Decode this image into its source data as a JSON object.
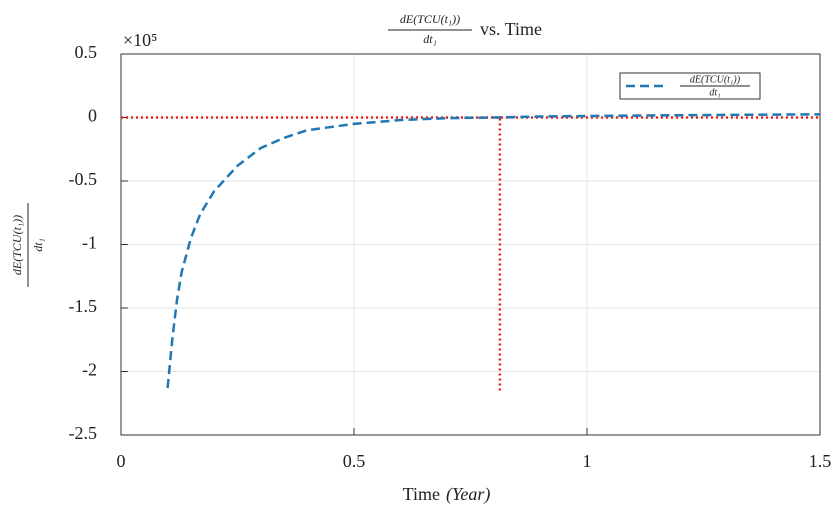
{
  "chart_data": {
    "type": "line",
    "title": {
      "numerator": "dE(TCU(t₁))",
      "denominator": "dt₁",
      "text": "vs. Time"
    },
    "x_label": {
      "text": "Time",
      "unit": "(Year)"
    },
    "y_label": {
      "numerator": "dE(TCU(t₁))",
      "denominator": "dt₁"
    },
    "y_multiplier": "×10⁵",
    "x": [
      0.1,
      0.11,
      0.12,
      0.13,
      0.15,
      0.17,
      0.2,
      0.25,
      0.3,
      0.35,
      0.4,
      0.5,
      0.6,
      0.7,
      0.8,
      0.9,
      1.0,
      1.2,
      1.5
    ],
    "series": [
      {
        "name": {
          "numerator": "dE(TCU(t₁))",
          "denominator": "dt₁"
        },
        "color": "#1f77b4",
        "values": [
          -2.13,
          -1.75,
          -1.44,
          -1.22,
          -0.95,
          -0.76,
          -0.58,
          -0.38,
          -0.24,
          -0.16,
          -0.1,
          -0.05,
          -0.02,
          -0.005,
          0.0,
          0.008,
          0.012,
          0.018,
          0.025
        ]
      }
    ],
    "hline": {
      "y": 0,
      "color": "#e8231f"
    },
    "vline": {
      "x": 0.813,
      "ymin": -2.15,
      "ymax": 0,
      "color": "#e8231f"
    },
    "xlim": [
      0,
      1.5
    ],
    "ylim": [
      -2.5,
      0.5
    ],
    "xticks": [
      0,
      0.5,
      1,
      1.5
    ],
    "yticks": [
      0.5,
      0,
      -0.5,
      -1,
      -1.5,
      -2,
      -2.5
    ],
    "grid": true,
    "legend": "upper right"
  }
}
